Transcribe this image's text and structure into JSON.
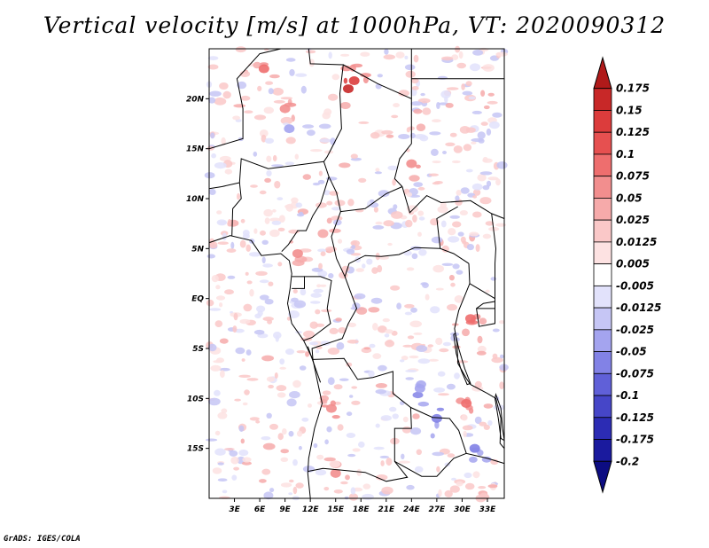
{
  "title": "Vertical velocity [m/s] at 1000hPa, VT: 2020090312",
  "credit": "GrADS: IGES/COLA",
  "map": {
    "lon_range": [
      0,
      35
    ],
    "lat_range": [
      -20,
      25
    ],
    "lat_ticks": [
      {
        "value": 20,
        "label": "20N"
      },
      {
        "value": 15,
        "label": "15N"
      },
      {
        "value": 10,
        "label": "10N"
      },
      {
        "value": 5,
        "label": "5N"
      },
      {
        "value": 0,
        "label": "EQ"
      },
      {
        "value": -5,
        "label": "5S"
      },
      {
        "value": -10,
        "label": "10S"
      },
      {
        "value": -15,
        "label": "15S"
      }
    ],
    "lon_ticks": [
      {
        "value": 3,
        "label": "3E"
      },
      {
        "value": 6,
        "label": "6E"
      },
      {
        "value": 9,
        "label": "9E"
      },
      {
        "value": 12,
        "label": "12E"
      },
      {
        "value": 15,
        "label": "15E"
      },
      {
        "value": 18,
        "label": "18E"
      },
      {
        "value": 21,
        "label": "21E"
      },
      {
        "value": 24,
        "label": "24E"
      },
      {
        "value": 27,
        "label": "27E"
      },
      {
        "value": 30,
        "label": "30E"
      },
      {
        "value": 33,
        "label": "33E"
      }
    ]
  },
  "colorbar": {
    "levels": [
      "0.175",
      "0.15",
      "0.125",
      "0.1",
      "0.075",
      "0.05",
      "0.025",
      "0.0125",
      "0.005",
      "-0.005",
      "-0.0125",
      "-0.025",
      "-0.05",
      "-0.075",
      "-0.1",
      "-0.125",
      "-0.175",
      "-0.2"
    ],
    "colors": [
      "#b01a1a",
      "#c82828",
      "#dc3c3c",
      "#e65050",
      "#ee6e6e",
      "#f28e8e",
      "#f6aaaa",
      "#fac8c8",
      "#fde2e2",
      "#ffffff",
      "#e2e2fb",
      "#c6c6f5",
      "#a4a4ef",
      "#8282e6",
      "#6060d8",
      "#4646c8",
      "#2c2cb4",
      "#1a1a9e",
      "#0c0c82"
    ],
    "end_colors": {
      "top": "#b01a1a",
      "bottom": "#0c0c82"
    }
  },
  "features": [
    {
      "lon": 16.5,
      "lat": 21.0,
      "value": 0.15
    },
    {
      "lon": 17.2,
      "lat": 21.8,
      "value": 0.125
    },
    {
      "lon": 6.5,
      "lat": 23.0,
      "value": 0.075
    },
    {
      "lon": 9.0,
      "lat": 19.0,
      "value": 0.06
    },
    {
      "lon": 24.0,
      "lat": 13.5,
      "value": 0.07
    },
    {
      "lon": 10.5,
      "lat": 4.5,
      "value": 0.05
    },
    {
      "lon": 13.5,
      "lat": 6.5,
      "value": 0.04
    },
    {
      "lon": 14.5,
      "lat": -11.0,
      "value": 0.06
    },
    {
      "lon": 15.0,
      "lat": -17.5,
      "value": 0.05
    },
    {
      "lon": 31.0,
      "lat": -2.0,
      "value": 0.08
    },
    {
      "lon": 30.5,
      "lat": -10.5,
      "value": 0.075
    },
    {
      "lon": 27.0,
      "lat": -12.0,
      "value": -0.075
    },
    {
      "lon": 31.5,
      "lat": -15.0,
      "value": -0.06
    },
    {
      "lon": 25.0,
      "lat": -9.0,
      "value": -0.04
    },
    {
      "lon": 9.5,
      "lat": 17.0,
      "value": -0.03
    }
  ]
}
